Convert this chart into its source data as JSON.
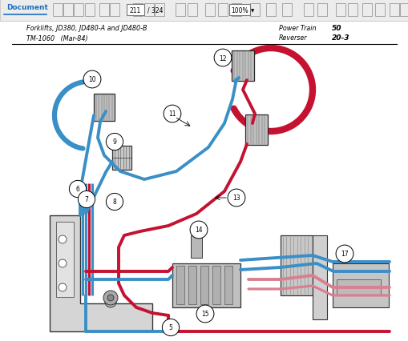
{
  "toolbar_bg": "#ececec",
  "page_bg": "#ffffff",
  "header_line1_left": "Forklifts, JD380, JD480-A and JD480-B",
  "header_line2_left": "TM-1060   (Mar-84)",
  "header_line1_right_label": "Power Train",
  "header_line1_right_value": "50",
  "header_line2_right_label": "Reverser",
  "header_line2_right_value": "20-3",
  "blue": "#3a8fc7",
  "red": "#c41230",
  "pink": "#d98090",
  "dark": "#222222",
  "gray_light": "#cccccc",
  "gray_med": "#aaaaaa",
  "gray_dark": "#555555",
  "comp_face": "#b8b8b8",
  "comp_edge": "#333333"
}
